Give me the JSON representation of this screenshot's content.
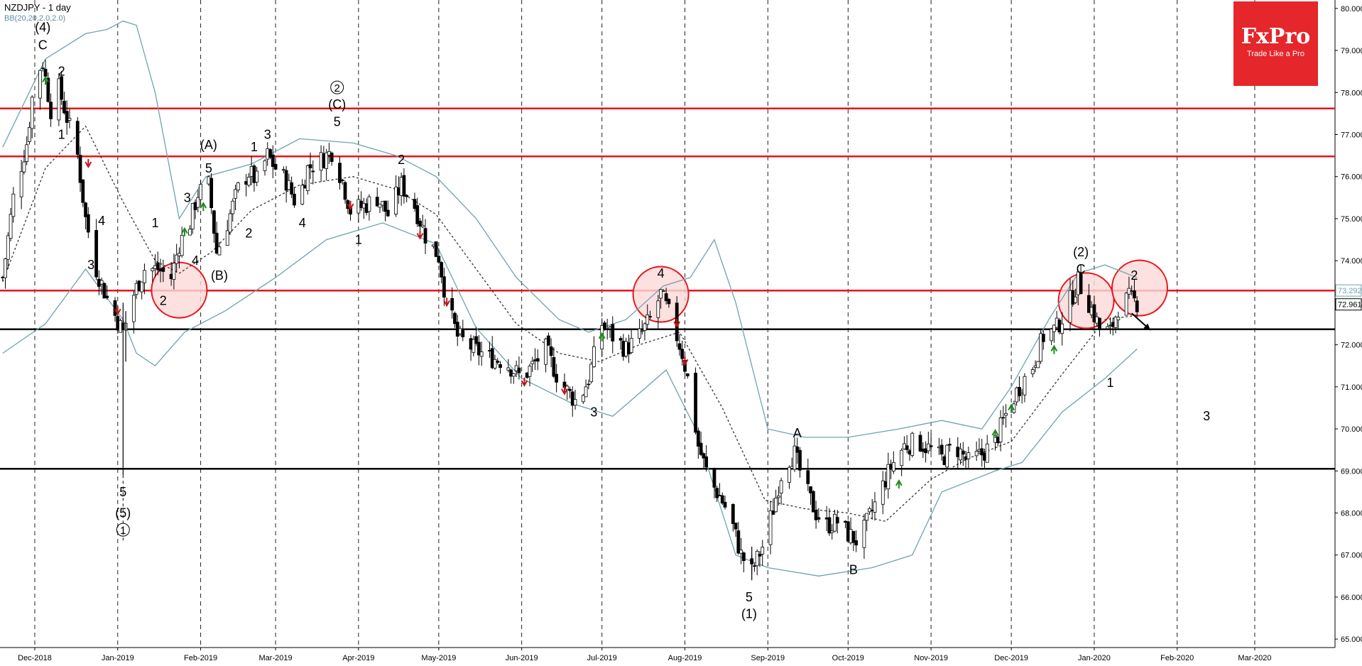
{
  "header": {
    "title": "NZDJPY - 1 day",
    "indicator": "BB(20,20,2.0,2.0)"
  },
  "logo": {
    "name": "FxPro",
    "tagline": "Trade Like a Pro"
  },
  "colors": {
    "candle": "#000000",
    "bollinger": "#6ea3ad",
    "bollinger_mid": "#333333",
    "resistance": "#e8141b",
    "support": "#000000",
    "highlight_circle": "#e8141b",
    "highlight_fill": "#fcd8d8",
    "arrow_up": "#1f8a1f",
    "arrow_down": "#c0161b",
    "logo_bg": "#e5262b"
  },
  "chart_data": {
    "type": "candlestick",
    "symbol": "NZDJPY",
    "timeframe": "1 day",
    "y_range": [
      64.8,
      80.2
    ],
    "y_ticks": [
      "80.000",
      "79.000",
      "78.000",
      "77.000",
      "76.000",
      "75.000",
      "74.000",
      "73.000",
      "72.000",
      "71.000",
      "70.000",
      "69.000",
      "68.000",
      "67.000",
      "66.000",
      "65.000"
    ],
    "x_range": [
      "2018-11-18",
      "2020-03-31"
    ],
    "x_ticks": [
      {
        "date": "2018-12-01",
        "label": "Dec-2018"
      },
      {
        "date": "2019-01-01",
        "label": "Jan-2019"
      },
      {
        "date": "2019-02-01",
        "label": "Feb-2019"
      },
      {
        "date": "2019-03-01",
        "label": "Mar-2019"
      },
      {
        "date": "2019-04-01",
        "label": "Apr-2019"
      },
      {
        "date": "2019-05-01",
        "label": "May-2019"
      },
      {
        "date": "2019-06-01",
        "label": "Jun-2019"
      },
      {
        "date": "2019-07-01",
        "label": "Jul-2019"
      },
      {
        "date": "2019-08-01",
        "label": "Aug-2019"
      },
      {
        "date": "2019-09-01",
        "label": "Sep-2019"
      },
      {
        "date": "2019-10-01",
        "label": "Oct-2019"
      },
      {
        "date": "2019-11-01",
        "label": "Nov-2019"
      },
      {
        "date": "2019-12-01",
        "label": "Dec-2019"
      },
      {
        "date": "2020-01-01",
        "label": "Jan-2020"
      },
      {
        "date": "2020-02-01",
        "label": "Feb-2020"
      },
      {
        "date": "2020-03-01",
        "label": "Mar-2020"
      }
    ],
    "extra_gridlines": [
      "2020-03-31"
    ],
    "price_path": [
      [
        "2018-11-19",
        73.6
      ],
      [
        "2018-11-23",
        75.5
      ],
      [
        "2018-11-28",
        76.8
      ],
      [
        "2018-12-01",
        78.4
      ],
      [
        "2018-12-04",
        78.7
      ],
      [
        "2018-12-07",
        77.6
      ],
      [
        "2018-12-10",
        78.1
      ],
      [
        "2018-12-13",
        77.4
      ],
      [
        "2018-12-17",
        76.5
      ],
      [
        "2018-12-20",
        75.0
      ],
      [
        "2018-12-24",
        73.8
      ],
      [
        "2018-12-28",
        73.1
      ],
      [
        "2019-01-03",
        72.3
      ],
      [
        "2019-01-07",
        73.2
      ],
      [
        "2019-01-11",
        73.8
      ],
      [
        "2019-01-16",
        73.8
      ],
      [
        "2019-01-21",
        73.6
      ],
      [
        "2019-01-24",
        74.4
      ],
      [
        "2019-01-28",
        74.9
      ],
      [
        "2019-01-31",
        75.6
      ],
      [
        "2019-02-04",
        75.8
      ],
      [
        "2019-02-07",
        74.2
      ],
      [
        "2019-02-11",
        74.9
      ],
      [
        "2019-02-15",
        75.7
      ],
      [
        "2019-02-19",
        76.1
      ],
      [
        "2019-02-22",
        75.9
      ],
      [
        "2019-02-26",
        76.5
      ],
      [
        "2019-03-01",
        76.2
      ],
      [
        "2019-03-05",
        75.9
      ],
      [
        "2019-03-09",
        75.3
      ],
      [
        "2019-03-13",
        76.2
      ],
      [
        "2019-03-18",
        76.4
      ],
      [
        "2019-03-22",
        76.6
      ],
      [
        "2019-03-26",
        75.9
      ],
      [
        "2019-03-29",
        75.2
      ],
      [
        "2019-04-03",
        75.3
      ],
      [
        "2019-04-08",
        75.5
      ],
      [
        "2019-04-12",
        75.1
      ],
      [
        "2019-04-17",
        75.8
      ],
      [
        "2019-04-22",
        75.3
      ],
      [
        "2019-04-26",
        74.6
      ],
      [
        "2019-05-01",
        74.1
      ],
      [
        "2019-05-04",
        73.0
      ],
      [
        "2019-05-08",
        72.2
      ],
      [
        "2019-05-14",
        71.9
      ],
      [
        "2019-05-20",
        71.7
      ],
      [
        "2019-05-26",
        71.6
      ],
      [
        "2019-06-01",
        71.2
      ],
      [
        "2019-06-05",
        71.5
      ],
      [
        "2019-06-10",
        71.9
      ],
      [
        "2019-06-14",
        71.3
      ],
      [
        "2019-06-18",
        70.9
      ],
      [
        "2019-06-22",
        70.6
      ],
      [
        "2019-06-26",
        71.2
      ],
      [
        "2019-07-01",
        72.5
      ],
      [
        "2019-07-05",
        72.2
      ],
      [
        "2019-07-10",
        71.9
      ],
      [
        "2019-07-15",
        72.2
      ],
      [
        "2019-07-19",
        72.6
      ],
      [
        "2019-07-23",
        73.2
      ],
      [
        "2019-07-27",
        72.6
      ],
      [
        "2019-07-31",
        71.8
      ],
      [
        "2019-08-03",
        70.9
      ],
      [
        "2019-08-06",
        69.6
      ],
      [
        "2019-08-10",
        68.8
      ],
      [
        "2019-08-14",
        68.4
      ],
      [
        "2019-08-18",
        67.9
      ],
      [
        "2019-08-22",
        67.0
      ],
      [
        "2019-08-26",
        66.6
      ],
      [
        "2019-08-30",
        67.2
      ],
      [
        "2019-09-03",
        68.1
      ],
      [
        "2019-09-07",
        69.2
      ],
      [
        "2019-09-11",
        69.4
      ],
      [
        "2019-09-15",
        68.6
      ],
      [
        "2019-09-19",
        68.0
      ],
      [
        "2019-09-23",
        67.7
      ],
      [
        "2019-09-27",
        67.8
      ],
      [
        "2019-10-01",
        67.5
      ],
      [
        "2019-10-05",
        67.3
      ],
      [
        "2019-10-09",
        67.9
      ],
      [
        "2019-10-13",
        68.5
      ],
      [
        "2019-10-17",
        69.1
      ],
      [
        "2019-10-22",
        69.6
      ],
      [
        "2019-10-27",
        69.7
      ],
      [
        "2019-11-01",
        69.5
      ],
      [
        "2019-11-05",
        69.3
      ],
      [
        "2019-11-10",
        69.6
      ],
      [
        "2019-11-15",
        69.2
      ],
      [
        "2019-11-20",
        69.4
      ],
      [
        "2019-11-25",
        69.7
      ],
      [
        "2019-11-30",
        70.5
      ],
      [
        "2019-12-04",
        71.0
      ],
      [
        "2019-12-09",
        71.5
      ],
      [
        "2019-12-13",
        72.2
      ],
      [
        "2019-12-18",
        72.4
      ],
      [
        "2019-12-22",
        72.9
      ],
      [
        "2019-12-26",
        73.5
      ],
      [
        "2019-12-30",
        73.0
      ],
      [
        "2020-01-03",
        72.4
      ],
      [
        "2020-01-07",
        72.3
      ],
      [
        "2020-01-10",
        72.9
      ],
      [
        "2020-01-14",
        73.1
      ],
      [
        "2020-01-17",
        73.0
      ]
    ],
    "current_price": "72.961",
    "resistance_price": "73.292",
    "horizontal_levels": [
      {
        "price": 77.62,
        "kind": "resistance"
      },
      {
        "price": 76.48,
        "kind": "resistance"
      },
      {
        "price": 73.29,
        "kind": "resistance"
      },
      {
        "price": 72.37,
        "kind": "support"
      },
      {
        "price": 69.05,
        "kind": "support"
      }
    ],
    "bollinger": {
      "upper": [
        [
          "2018-11-19",
          76.7
        ],
        [
          "2018-12-05",
          78.8
        ],
        [
          "2018-12-20",
          79.4
        ],
        [
          "2018-12-28",
          79.5
        ],
        [
          "2019-01-03",
          79.7
        ],
        [
          "2019-01-08",
          79.6
        ],
        [
          "2019-01-15",
          78.0
        ],
        [
          "2019-01-24",
          75.0
        ],
        [
          "2019-02-03",
          76.0
        ],
        [
          "2019-02-20",
          76.3
        ],
        [
          "2019-03-10",
          76.9
        ],
        [
          "2019-03-30",
          76.8
        ],
        [
          "2019-04-15",
          76.5
        ],
        [
          "2019-04-30",
          76.0
        ],
        [
          "2019-05-15",
          75.0
        ],
        [
          "2019-05-30",
          73.6
        ],
        [
          "2019-06-15",
          72.6
        ],
        [
          "2019-06-26",
          72.3
        ],
        [
          "2019-07-10",
          72.6
        ],
        [
          "2019-07-24",
          73.4
        ],
        [
          "2019-08-03",
          73.6
        ],
        [
          "2019-08-12",
          74.5
        ],
        [
          "2019-08-20",
          73.0
        ],
        [
          "2019-09-01",
          70.0
        ],
        [
          "2019-09-15",
          69.8
        ],
        [
          "2019-10-01",
          69.8
        ],
        [
          "2019-10-20",
          70.0
        ],
        [
          "2019-11-05",
          70.2
        ],
        [
          "2019-11-20",
          70.0
        ],
        [
          "2019-12-01",
          71.0
        ],
        [
          "2019-12-15",
          72.6
        ],
        [
          "2019-12-26",
          73.7
        ],
        [
          "2020-01-05",
          73.9
        ],
        [
          "2020-01-17",
          73.6
        ]
      ],
      "middle": [
        [
          "2018-11-19",
          73.5
        ],
        [
          "2018-12-05",
          76.2
        ],
        [
          "2018-12-20",
          77.2
        ],
        [
          "2019-01-03",
          75.4
        ],
        [
          "2019-01-15",
          74.0
        ],
        [
          "2019-01-24",
          73.7
        ],
        [
          "2019-02-05",
          74.2
        ],
        [
          "2019-02-20",
          75.2
        ],
        [
          "2019-03-10",
          75.8
        ],
        [
          "2019-03-30",
          76.0
        ],
        [
          "2019-04-15",
          75.7
        ],
        [
          "2019-04-30",
          75.1
        ],
        [
          "2019-05-15",
          73.8
        ],
        [
          "2019-05-30",
          72.5
        ],
        [
          "2019-06-15",
          71.8
        ],
        [
          "2019-06-30",
          71.6
        ],
        [
          "2019-07-15",
          72.0
        ],
        [
          "2019-07-30",
          72.3
        ],
        [
          "2019-08-15",
          70.5
        ],
        [
          "2019-08-31",
          68.3
        ],
        [
          "2019-09-15",
          68.1
        ],
        [
          "2019-10-01",
          68.0
        ],
        [
          "2019-10-15",
          67.8
        ],
        [
          "2019-11-01",
          68.8
        ],
        [
          "2019-11-15",
          69.3
        ],
        [
          "2019-12-01",
          69.7
        ],
        [
          "2019-12-20",
          71.3
        ],
        [
          "2020-01-05",
          72.6
        ],
        [
          "2020-01-17",
          72.7
        ]
      ],
      "lower": [
        [
          "2018-11-19",
          71.8
        ],
        [
          "2018-12-05",
          72.5
        ],
        [
          "2018-12-20",
          73.8
        ],
        [
          "2019-01-03",
          72.6
        ],
        [
          "2019-01-08",
          71.8
        ],
        [
          "2019-01-15",
          71.5
        ],
        [
          "2019-01-26",
          72.3
        ],
        [
          "2019-02-10",
          72.8
        ],
        [
          "2019-03-01",
          73.6
        ],
        [
          "2019-03-20",
          74.5
        ],
        [
          "2019-04-10",
          74.9
        ],
        [
          "2019-04-30",
          74.4
        ],
        [
          "2019-05-15",
          72.4
        ],
        [
          "2019-06-01",
          71.2
        ],
        [
          "2019-06-20",
          70.6
        ],
        [
          "2019-07-05",
          70.3
        ],
        [
          "2019-07-25",
          71.4
        ],
        [
          "2019-08-05",
          70.0
        ],
        [
          "2019-08-20",
          67.0
        ],
        [
          "2019-09-01",
          66.7
        ],
        [
          "2019-09-20",
          66.5
        ],
        [
          "2019-10-10",
          66.7
        ],
        [
          "2019-10-25",
          67.0
        ],
        [
          "2019-11-05",
          68.5
        ],
        [
          "2019-11-25",
          69.0
        ],
        [
          "2019-12-05",
          69.2
        ],
        [
          "2019-12-20",
          70.4
        ],
        [
          "2020-01-05",
          71.2
        ],
        [
          "2020-01-17",
          71.9
        ]
      ]
    },
    "wave_labels": [
      {
        "text": "(4)",
        "date": "2018-12-04",
        "price": 79.45
      },
      {
        "text": "C",
        "date": "2018-12-04",
        "price": 79.03
      },
      {
        "text": "2",
        "date": "2018-12-11",
        "price": 78.4
      },
      {
        "text": "1",
        "date": "2018-12-11",
        "price": 76.9
      },
      {
        "text": "4",
        "date": "2018-12-26",
        "price": 74.85
      },
      {
        "text": "3",
        "date": "2018-12-22",
        "price": 73.8
      },
      {
        "text": "5",
        "date": "2019-01-03",
        "price": 68.4
      },
      {
        "text": "(5)",
        "date": "2019-01-03",
        "price": 67.9
      },
      {
        "text": "1",
        "date": "2019-01-03",
        "price": 67.5,
        "circled": true
      },
      {
        "text": "1",
        "date": "2019-01-15",
        "price": 74.8
      },
      {
        "text": "2",
        "date": "2019-01-18",
        "price": 72.95
      },
      {
        "text": "3",
        "date": "2019-01-27",
        "price": 75.4
      },
      {
        "text": "4",
        "date": "2019-01-30",
        "price": 73.9
      },
      {
        "text": "(A)",
        "date": "2019-02-04",
        "price": 76.65
      },
      {
        "text": "5",
        "date": "2019-02-04",
        "price": 76.1
      },
      {
        "text": "(B)",
        "date": "2019-02-08",
        "price": 73.55
      },
      {
        "text": "1",
        "date": "2019-02-21",
        "price": 76.6
      },
      {
        "text": "3",
        "date": "2019-02-26",
        "price": 76.9
      },
      {
        "text": "2",
        "date": "2019-02-19",
        "price": 74.55
      },
      {
        "text": "4",
        "date": "2019-03-11",
        "price": 74.8
      },
      {
        "text": "2",
        "date": "2019-03-24",
        "price": 78.02,
        "circled": true
      },
      {
        "text": "(C)",
        "date": "2019-03-24",
        "price": 77.62
      },
      {
        "text": "5",
        "date": "2019-03-24",
        "price": 77.2
      },
      {
        "text": "1",
        "date": "2019-04-01",
        "price": 74.4
      },
      {
        "text": "2",
        "date": "2019-04-17",
        "price": 76.3
      },
      {
        "text": "3",
        "date": "2019-06-28",
        "price": 70.3
      },
      {
        "text": "4",
        "date": "2019-07-23",
        "price": 73.6
      },
      {
        "text": "5",
        "date": "2019-08-25",
        "price": 65.9
      },
      {
        "text": "(1)",
        "date": "2019-08-25",
        "price": 65.5
      },
      {
        "text": "A",
        "date": "2019-09-12",
        "price": 69.8
      },
      {
        "text": "B",
        "date": "2019-10-03",
        "price": 66.55
      },
      {
        "text": "(2)",
        "date": "2019-12-27",
        "price": 74.1
      },
      {
        "text": "C",
        "date": "2019-12-27",
        "price": 73.7
      },
      {
        "text": "1",
        "date": "2020-01-07",
        "price": 71.0
      },
      {
        "text": "2",
        "date": "2020-01-16",
        "price": 73.55
      },
      {
        "text": "3",
        "date": "2020-02-12",
        "price": 70.2
      }
    ],
    "highlight_circles": [
      {
        "date": "2019-01-24",
        "price": 73.3
      },
      {
        "date": "2019-07-23",
        "price": 73.2
      },
      {
        "date": "2019-12-29",
        "price": 73.05
      },
      {
        "date": "2020-01-18",
        "price": 73.35
      }
    ],
    "signal_arrows": [
      {
        "date": "2018-12-05",
        "price": 78.3,
        "dir": "up"
      },
      {
        "date": "2018-12-21",
        "price": 76.3,
        "dir": "down"
      },
      {
        "date": "2019-01-01",
        "price": 72.8,
        "dir": "down"
      },
      {
        "date": "2019-01-26",
        "price": 74.7,
        "dir": "up"
      },
      {
        "date": "2019-02-02",
        "price": 75.3,
        "dir": "up"
      },
      {
        "date": "2019-03-29",
        "price": 75.3,
        "dir": "down"
      },
      {
        "date": "2019-04-24",
        "price": 74.6,
        "dir": "down"
      },
      {
        "date": "2019-05-04",
        "price": 73.0,
        "dir": "down"
      },
      {
        "date": "2019-06-02",
        "price": 71.1,
        "dir": "down"
      },
      {
        "date": "2019-06-17",
        "price": 70.9,
        "dir": "down"
      },
      {
        "date": "2019-07-01",
        "price": 72.2,
        "dir": "up"
      },
      {
        "date": "2019-07-29",
        "price": 72.5,
        "dir": "down"
      },
      {
        "date": "2019-08-01",
        "price": 71.6,
        "dir": "down"
      },
      {
        "date": "2019-10-20",
        "price": 68.7,
        "dir": "up"
      },
      {
        "date": "2019-11-25",
        "price": 69.9,
        "dir": "up"
      },
      {
        "date": "2019-12-01",
        "price": 70.5,
        "dir": "up"
      },
      {
        "date": "2019-12-17",
        "price": 71.9,
        "dir": "up"
      }
    ],
    "projection_arrow": {
      "from": [
        "2020-01-15",
        72.75
      ],
      "to": [
        "2020-01-22",
        72.35
      ]
    }
  }
}
